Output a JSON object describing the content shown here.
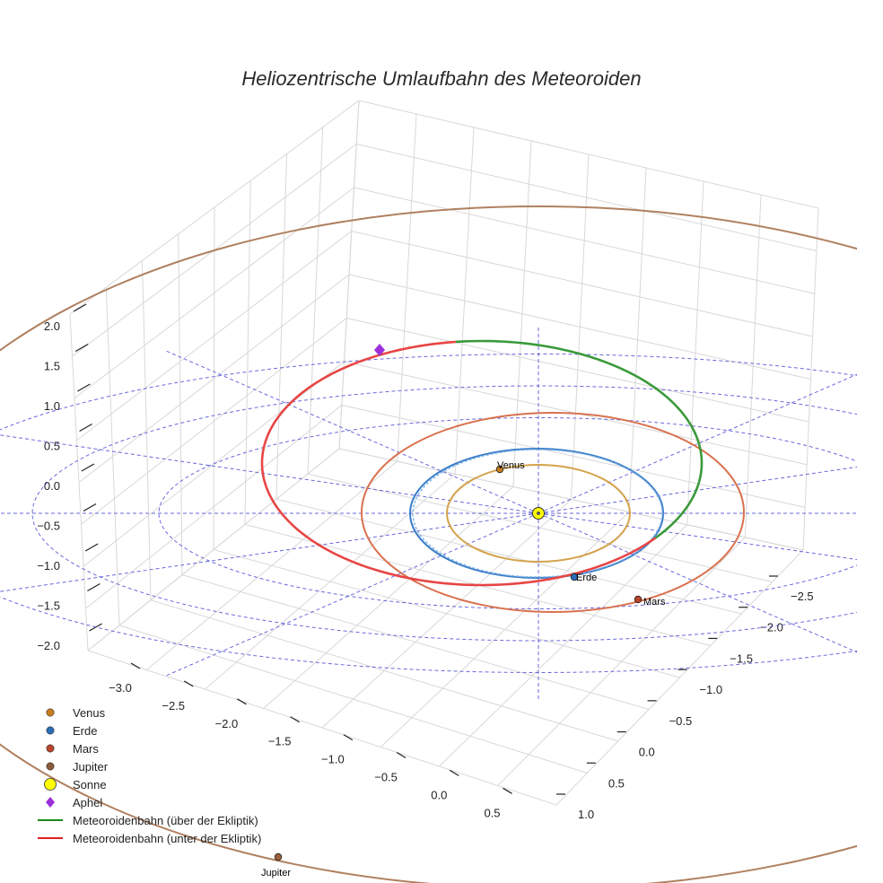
{
  "chart_data": {
    "type": "line",
    "projection": "3d",
    "title": "Heliozentrische Umlaufbahn des Meteoroiden",
    "axes": {
      "x_ticks": [
        "−3.0",
        "−2.5",
        "−2.0",
        "−1.5",
        "−1.0",
        "−0.5",
        "0.0",
        "0.5"
      ],
      "y_ticks": [
        "−2.5",
        "−2.0",
        "−1.5",
        "−1.0",
        "−0.5",
        "0.0",
        "0.5",
        "1.0"
      ],
      "z_ticks": [
        "2.0",
        "1.5",
        "1.0",
        "0.5",
        "0.0",
        "−0.5",
        "−1.0",
        "−1.5",
        "−2.0"
      ],
      "x_range": [
        -3.0,
        0.5
      ],
      "y_range": [
        -2.5,
        1.0
      ],
      "z_range": [
        -2.0,
        2.0
      ],
      "grid": true
    },
    "orbits": [
      {
        "name": "Venus",
        "radius_au": 0.72,
        "color": "#d4a24c"
      },
      {
        "name": "Erde",
        "radius_au": 1.0,
        "color": "#3a7dc9"
      },
      {
        "name": "Mars",
        "radius_au": 1.52,
        "color": "#d9714e"
      },
      {
        "name": "Jupiter",
        "radius_au": 5.2,
        "color": "#b08060"
      }
    ],
    "reference_circles_au": [
      1.5,
      2.0,
      2.5
    ],
    "planets": [
      {
        "name": "Venus",
        "label": "Venus",
        "color": "#c87d1e"
      },
      {
        "name": "Erde",
        "label": "Erde",
        "color": "#2a6db6"
      },
      {
        "name": "Mars",
        "label": "Mars",
        "color": "#b9452a"
      },
      {
        "name": "Jupiter",
        "label": "Jupiter",
        "color": "#a0603a"
      }
    ],
    "meteoroid": {
      "above_ecliptic_label": "Meteoroidenbahn (über der Ekliptik)",
      "below_ecliptic_label": "Meteoroidenbahn (unter der Ekliptik)",
      "above_color": "#3a9a3a",
      "below_color": "#e84545"
    },
    "legend": {
      "position": "lower-left",
      "entries": [
        {
          "label": "Venus",
          "marker": "circle",
          "color": "#c87d1e"
        },
        {
          "label": "Erde",
          "marker": "circle",
          "color": "#2a6db6"
        },
        {
          "label": "Mars",
          "marker": "circle",
          "color": "#b9452a"
        },
        {
          "label": "Jupiter",
          "marker": "circle",
          "color": "#8a5a3a"
        },
        {
          "label": "Sonne",
          "marker": "big-circle",
          "color": "#ffff00"
        },
        {
          "label": "Aphel",
          "marker": "diamond",
          "color": "#9b30d9"
        },
        {
          "label": "Meteoroidenbahn (über der Ekliptik)",
          "marker": "line",
          "color": "#1a8a1a"
        },
        {
          "label": "Meteoroidenbahn (unter der Ekliptik)",
          "marker": "line",
          "color": "#e02020"
        }
      ]
    },
    "sun": {
      "label": "Sonne",
      "color": "#ffff00"
    },
    "aphel": {
      "label": "Aphel",
      "color": "#9b30d9"
    }
  }
}
